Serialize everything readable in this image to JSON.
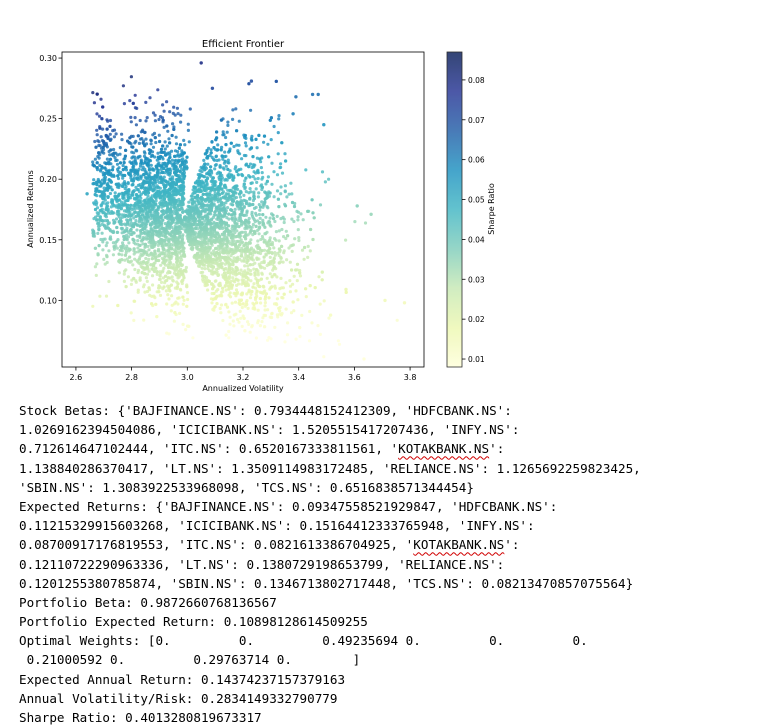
{
  "chart_data": {
    "type": "scatter",
    "title": "Efficient Frontier",
    "xlabel": "Annualized Volatility",
    "ylabel": "Annualized Returns",
    "xlim": [
      2.55,
      3.85
    ],
    "ylim": [
      0.045,
      0.305
    ],
    "xticks": [
      "2.6",
      "2.8",
      "3.0",
      "3.2",
      "3.4",
      "3.6",
      "3.8"
    ],
    "yticks": [
      "0.10",
      "0.15",
      "0.20",
      "0.25",
      "0.30"
    ],
    "colorbar": {
      "label": "Sharpe Ratio",
      "range": [
        0.008,
        0.087
      ],
      "ticks": [
        "0.01",
        "0.02",
        "0.03",
        "0.04",
        "0.05",
        "0.06",
        "0.07",
        "0.08"
      ],
      "colormap": [
        "#ffffd9",
        "#edf8b1",
        "#c7e9b4",
        "#7fcdbb",
        "#41b6c4",
        "#1d91c0",
        "#225ea8",
        "#253494",
        "#081d58"
      ]
    },
    "points_description": "Dense cloud of random portfolios: volatility roughly 2.65 to 3.75, returns roughly 0.07 to 0.30, colored by Sharpe ratio (higher return relative to volatility is darker blue).",
    "cloud": {
      "center_volatility": 2.98,
      "center_return": 0.165,
      "outliers": [
        [
          3.05,
          0.296
        ],
        [
          3.09,
          0.275
        ],
        [
          3.23,
          0.281
        ],
        [
          3.47,
          0.27
        ],
        [
          3.45,
          0.27
        ],
        [
          3.39,
          0.268
        ],
        [
          3.38,
          0.254
        ],
        [
          3.49,
          0.245
        ],
        [
          3.71,
          0.1
        ],
        [
          3.78,
          0.098
        ],
        [
          3.66,
          0.171
        ],
        [
          3.61,
          0.178
        ],
        [
          3.57,
          0.109
        ],
        [
          2.64,
          0.188
        ],
        [
          2.67,
          0.143
        ]
      ]
    },
    "grid": false
  },
  "output_lines": [
    [
      {
        "t": "Stock Betas: {'BAJFINANCE.NS': 0.7934448152412309, 'HDFCBANK.NS':"
      }
    ],
    [
      {
        "t": "1.0269162394504086, 'ICICIBANK.NS': 1.5205515417207436, 'INFY.NS':"
      }
    ],
    [
      {
        "t": "0.712614647102444, 'ITC.NS': 0.6520167333811561, '"
      },
      {
        "t": "KOTAKBANK.NS",
        "sq": true
      },
      {
        "t": "':"
      }
    ],
    [
      {
        "t": "1.138840286370417, 'LT.NS': 1.3509114983172485, 'RELIANCE.NS': 1.1265692259823425,"
      }
    ],
    [
      {
        "t": "'SBIN.NS': 1.3083922533968098, 'TCS.NS': 0.6516838571344454}"
      }
    ],
    [
      {
        "t": "Expected Returns: {'BAJFINANCE.NS': 0.09347558521929847, 'HDFCBANK.NS':"
      }
    ],
    [
      {
        "t": "0.11215329915603268, 'ICICIBANK.NS': 0.15164412333765948, 'INFY.NS':"
      }
    ],
    [
      {
        "t": "0.08700917176819553, 'ITC.NS': 0.0821613386704925, '"
      },
      {
        "t": "KOTAKBANK.NS",
        "sq": true
      },
      {
        "t": "':"
      }
    ],
    [
      {
        "t": "0.12110722290963336, 'LT.NS': 0.1380729198653799, 'RELIANCE.NS':"
      }
    ],
    [
      {
        "t": "0.1201255380785874, 'SBIN.NS': 0.1346713802717448, 'TCS.NS': 0.08213470857075564}"
      }
    ],
    [
      {
        "t": "Portfolio Beta: 0.9872660768136567"
      }
    ],
    [
      {
        "t": "Portfolio Expected Return: 0.10898128614509255"
      }
    ],
    [
      {
        "t": "Optimal Weights: [0.         0.         0.49235694 0.         0.         0."
      }
    ],
    [
      {
        "t": " 0.21000592 0.         0.29763714 0.        ]"
      }
    ],
    [
      {
        "t": "Expected Annual Return: 0.14374237157379163"
      }
    ],
    [
      {
        "t": "Annual Volatility/Risk: 0.2834149332790779"
      }
    ],
    [
      {
        "t": "Sharpe Ratio: 0.4013280819673317"
      }
    ]
  ]
}
